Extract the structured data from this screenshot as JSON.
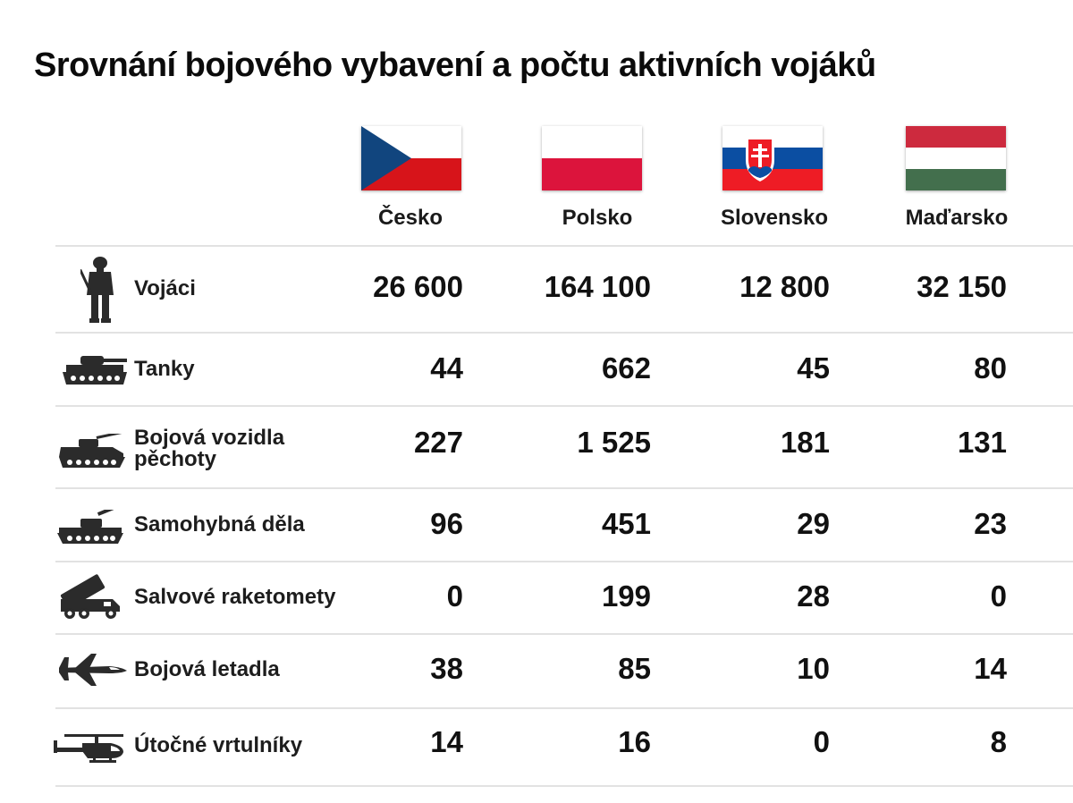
{
  "title": "Srovnání bojového vybavení a počtu aktivních vojáků",
  "countries": [
    {
      "name": "Česko",
      "flag": "czech-flag"
    },
    {
      "name": "Polsko",
      "flag": "poland-flag"
    },
    {
      "name": "Slovensko",
      "flag": "slovakia-flag"
    },
    {
      "name": "Maďarsko",
      "flag": "hungary-flag"
    }
  ],
  "rows": [
    {
      "label": "Vojáci",
      "icon": "soldier-icon",
      "values": [
        "26 600",
        "164 100",
        "12 800",
        "32 150"
      ]
    },
    {
      "label": "Tanky",
      "icon": "tank-icon",
      "values": [
        "44",
        "662",
        "45",
        "80"
      ]
    },
    {
      "label": "Bojová vozidla",
      "label2": "pěchoty",
      "icon": "infantry-vehicle-icon",
      "values": [
        "227",
        "1 525",
        "181",
        "131"
      ]
    },
    {
      "label": "Samohybná děla",
      "icon": "self-propelled-gun-icon",
      "values": [
        "96",
        "451",
        "29",
        "23"
      ]
    },
    {
      "label": "Salvové raketomety",
      "icon": "rocket-launcher-icon",
      "values": [
        "0",
        "199",
        "28",
        "0"
      ]
    },
    {
      "label": "Bojová letadla",
      "icon": "fighter-jet-icon",
      "values": [
        "38",
        "85",
        "10",
        "14"
      ]
    },
    {
      "label": "Útočné vrtulníky",
      "icon": "helicopter-icon",
      "values": [
        "14",
        "16",
        "0",
        "8"
      ]
    }
  ],
  "colors": {
    "text": "#111111",
    "divider": "#e2e2e2",
    "icon": "#2b2b2b",
    "czech_blue": "#11457e",
    "czech_red": "#d7141a",
    "poland_red": "#dc143c",
    "slovakia_blue": "#0b4ea2",
    "slovakia_red": "#ee1c25",
    "hungary_red": "#cd2a3e",
    "hungary_green": "#436f4d"
  }
}
